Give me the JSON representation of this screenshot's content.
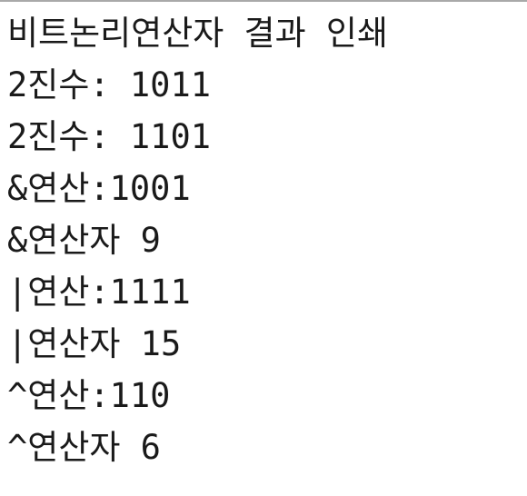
{
  "console": {
    "lines": [
      "비트논리연산자 결과 인쇄",
      "2진수: 1011",
      "2진수: 1101",
      "&연산:1001",
      "&연산자 9",
      "|연산:1111",
      "|연산자 15",
      "^연산:110",
      "^연산자 6"
    ]
  },
  "colors": {
    "background": "#ffffff",
    "text": "#1a1a1a",
    "top_border": "#a9a9a9"
  }
}
